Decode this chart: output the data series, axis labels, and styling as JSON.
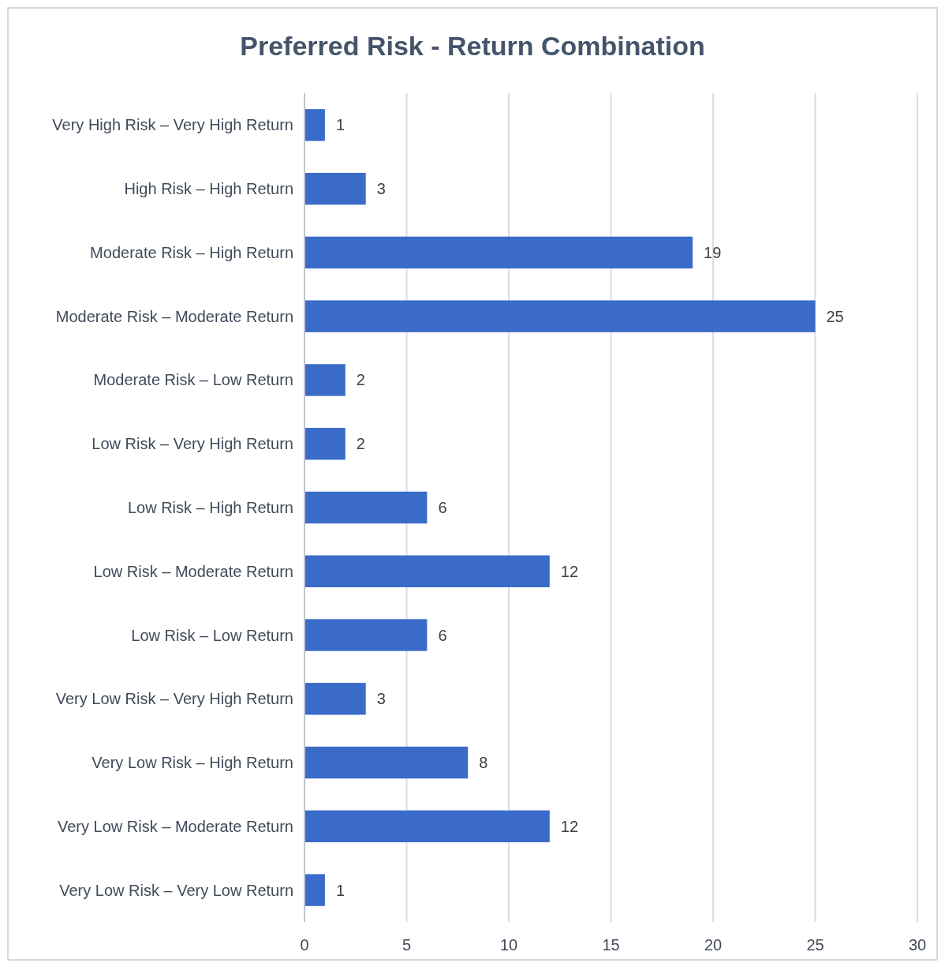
{
  "chart_data": {
    "type": "bar",
    "orientation": "horizontal",
    "title": "Preferred Risk - Return Combination",
    "categories": [
      "Very High Risk – Very High Return",
      "High Risk – High Return",
      "Moderate Risk – High Return",
      "Moderate Risk – Moderate Return",
      "Moderate Risk – Low Return",
      "Low Risk – Very High Return",
      "Low Risk – High Return",
      "Low Risk – Moderate Return",
      "Low Risk – Low Return",
      "Very Low Risk – Very High Return",
      "Very Low Risk – High Return",
      "Very Low Risk – Moderate Return",
      "Very Low Risk – Very Low Return"
    ],
    "values": [
      1,
      3,
      19,
      25,
      2,
      2,
      6,
      12,
      6,
      3,
      8,
      12,
      1
    ],
    "color": "#3a6bc9",
    "xlim": [
      0,
      30
    ],
    "xticks": [
      0,
      5,
      10,
      15,
      20,
      25,
      30
    ],
    "grid": "x",
    "data_labels": true
  }
}
